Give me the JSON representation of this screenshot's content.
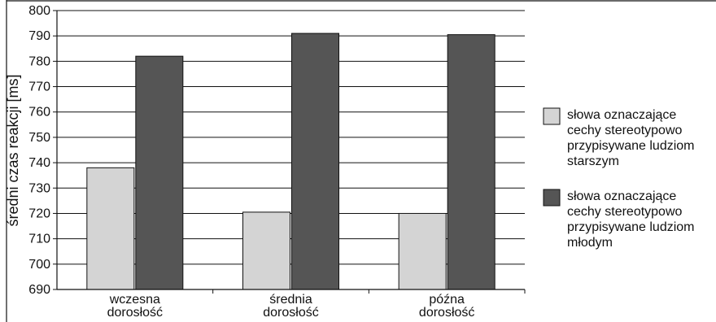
{
  "chart_data": {
    "type": "bar",
    "title": "",
    "xlabel": "",
    "ylabel": "średni czas reakcji [ms]",
    "ylim": [
      690,
      800
    ],
    "yticks": [
      690,
      700,
      710,
      720,
      730,
      740,
      750,
      760,
      770,
      780,
      790,
      800
    ],
    "grid": true,
    "legend_position": "right",
    "categories": [
      [
        "wczesna",
        "dorosłość"
      ],
      [
        "średnia",
        "dorosłość"
      ],
      [
        "późna",
        "dorosłość"
      ]
    ],
    "series": [
      {
        "name": [
          "słowa oznaczające",
          "cechy stereotypowo",
          "przypisywane ludziom",
          "starszym"
        ],
        "color": "#d4d4d4",
        "values": [
          738,
          720.5,
          720
        ]
      },
      {
        "name": [
          "słowa oznaczające",
          "cechy stereotypowo",
          "przypisywane ludziom",
          "młodym"
        ],
        "color": "#555555",
        "values": [
          782,
          791,
          790.5
        ]
      }
    ]
  }
}
